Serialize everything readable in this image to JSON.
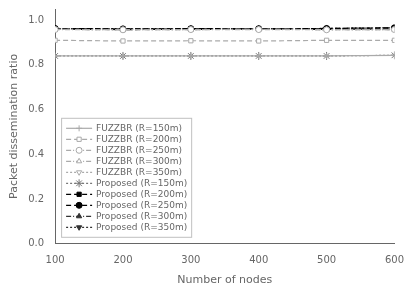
{
  "chart_data": {
    "type": "line",
    "x": [
      100,
      200,
      300,
      400,
      500,
      600
    ],
    "series": [
      {
        "name": "FUZZBR (R=150m)",
        "color": "#aaaaaa",
        "marker": "plus",
        "line_style": "solid",
        "values": [
          0.84,
          0.84,
          0.84,
          0.84,
          0.84,
          0.843
        ]
      },
      {
        "name": "FUZZBR (R=200m)",
        "color": "#aaaaaa",
        "marker": "open-square",
        "line_style": "dashed",
        "values": [
          0.91,
          0.907,
          0.908,
          0.907,
          0.91,
          0.91
        ]
      },
      {
        "name": "FUZZBR (R=250m)",
        "color": "#aaaaaa",
        "marker": "open-circle",
        "line_style": "dashdot",
        "values": [
          0.958,
          0.957,
          0.958,
          0.958,
          0.957,
          0.958
        ]
      },
      {
        "name": "FUZZBR (R=300m)",
        "color": "#aaaaaa",
        "marker": "open-triangle-up",
        "line_style": "dashdot",
        "values": [
          0.959,
          0.957,
          0.958,
          0.959,
          0.958,
          0.958
        ]
      },
      {
        "name": "FUZZBR (R=350m)",
        "color": "#aaaaaa",
        "marker": "open-triangle-down",
        "line_style": "dotted",
        "values": [
          0.959,
          0.957,
          0.958,
          0.959,
          0.958,
          0.958
        ]
      },
      {
        "name": "Proposed (R=150m)",
        "color": "#777777",
        "marker": "star",
        "line_style": "dotted",
        "values": [
          0.84,
          0.84,
          0.84,
          0.84,
          0.84,
          0.843
        ]
      },
      {
        "name": "Proposed (R=200m)",
        "color": "#000000",
        "marker": "square",
        "line_style": "dashed",
        "values": [
          0.96,
          0.958,
          0.959,
          0.96,
          0.959,
          0.96
        ]
      },
      {
        "name": "Proposed (R=250m)",
        "color": "#000000",
        "marker": "circle",
        "line_style": "dashed",
        "values": [
          0.963,
          0.961,
          0.962,
          0.962,
          0.963,
          0.966
        ]
      },
      {
        "name": "Proposed (R=300m)",
        "color": "#333333",
        "marker": "triangle-up",
        "line_style": "dashdot",
        "values": [
          0.963,
          0.961,
          0.962,
          0.962,
          0.963,
          0.966
        ]
      },
      {
        "name": "Proposed (R=350m)",
        "color": "#333333",
        "marker": "triangle-down",
        "line_style": "dotted",
        "values": [
          0.963,
          0.961,
          0.962,
          0.962,
          0.963,
          0.966
        ]
      }
    ],
    "xlabel": "Number of nodes",
    "ylabel": "Packet dissemination ratio",
    "xlim": [
      100,
      600
    ],
    "ylim": [
      0,
      1.05
    ],
    "xticks": [
      100,
      200,
      300,
      400,
      500,
      600
    ],
    "yticks": [
      {
        "value": 0,
        "label": "0.0"
      },
      0.2,
      0.4,
      0.6,
      0.8,
      {
        "value": 1,
        "label": "1.0"
      }
    ],
    "grid": false,
    "legend": "lower left"
  }
}
